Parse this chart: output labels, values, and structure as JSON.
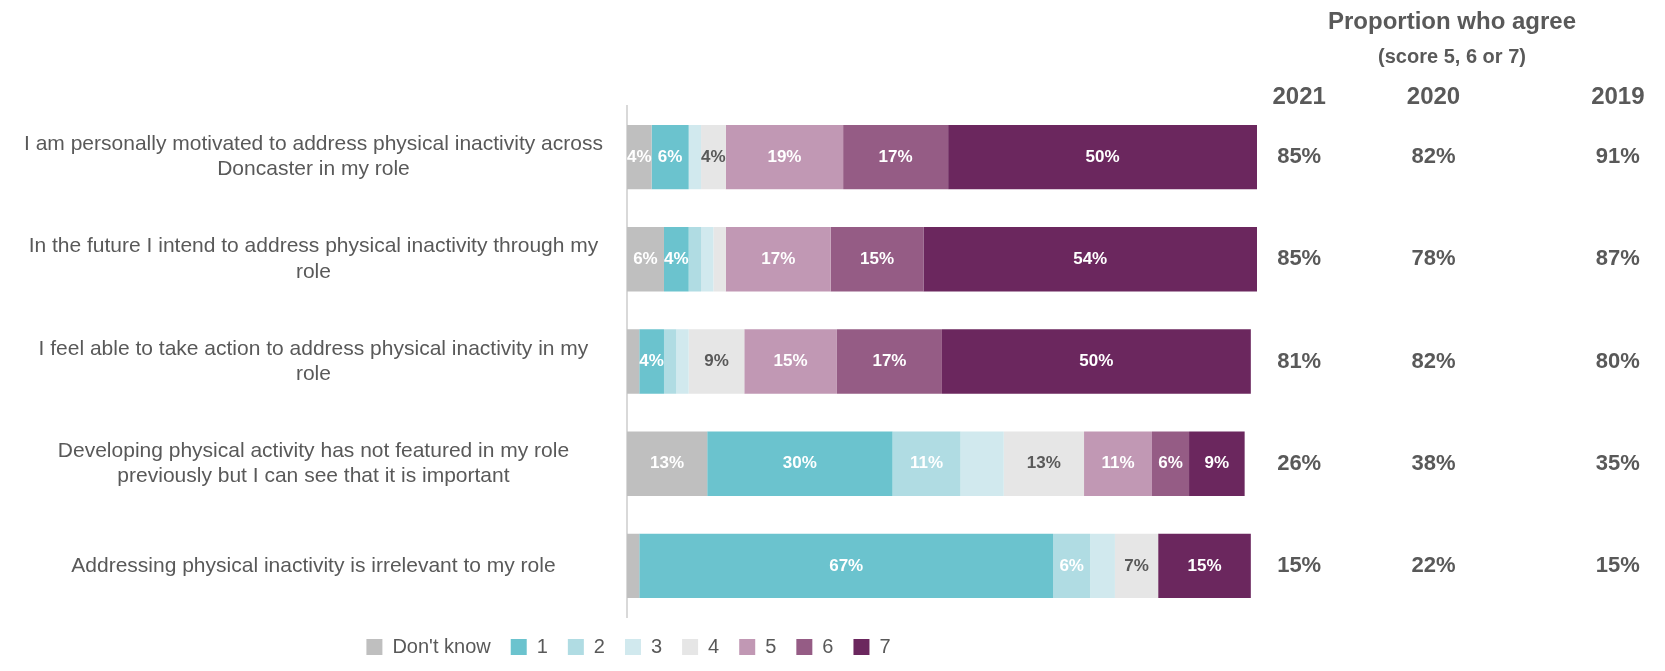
{
  "chart_data": [
    {
      "type": "bar",
      "orientation": "horizontal",
      "stacked": true,
      "legend": "bottom",
      "grid": false,
      "tick_labels": "y",
      "categories": [
        "I am personally motivated to address physical inactivity across Doncaster in my role",
        "In the future I intend to address physical inactivity through my role",
        "I feel able to take action to address physical inactivity in my role",
        "Developing physical activity has not featured in my role previously but I can see that it is important",
        "Addressing physical inactivity is irrelevant to my role"
      ],
      "xlim": [
        0,
        102
      ],
      "series": [
        {
          "name": "Don't know",
          "color": "#bfbfbf",
          "values": [
            4,
            6,
            2,
            13,
            2
          ],
          "value_labels": [
            "4%",
            "6%",
            null,
            "13%",
            null
          ]
        },
        {
          "name": "1",
          "color": "#6bc3ce",
          "values": [
            6,
            4,
            4,
            30,
            67
          ],
          "value_labels": [
            "6%",
            "4%",
            "4%",
            "30%",
            "67%"
          ]
        },
        {
          "name": "2",
          "color": "#b0dce3",
          "values": [
            0,
            2,
            2,
            11,
            6
          ],
          "value_labels": [
            null,
            null,
            null,
            "11%",
            "6%"
          ]
        },
        {
          "name": "3",
          "color": "#d1e9ee",
          "values": [
            2,
            2,
            2,
            7,
            4
          ],
          "value_labels": [
            null,
            null,
            null,
            null,
            null
          ]
        },
        {
          "name": "4",
          "color": "#e6e6e6",
          "values": [
            4,
            2,
            9,
            13,
            7
          ],
          "value_labels": [
            "4%",
            null,
            "9%",
            "13%",
            "7%"
          ]
        },
        {
          "name": "5",
          "color": "#c198b4",
          "values": [
            19,
            17,
            15,
            11,
            0
          ],
          "value_labels": [
            "19%",
            "17%",
            "15%",
            "11%",
            null
          ]
        },
        {
          "name": "6",
          "color": "#955c85",
          "values": [
            17,
            15,
            17,
            6,
            0
          ],
          "value_labels": [
            "17%",
            "15%",
            "17%",
            "6%",
            null
          ]
        },
        {
          "name": "7",
          "color": "#6b275e",
          "values": [
            50,
            54,
            50,
            9,
            15
          ],
          "value_labels": [
            "50%",
            "54%",
            "50%",
            "9%",
            "15%"
          ]
        }
      ]
    },
    {
      "type": "other",
      "title": "Proportion who agree",
      "subtitle": "(score 5, 6 or 7)",
      "categories": [
        "2021",
        "2020",
        "2019"
      ],
      "annotations": [
        "85%",
        "82%",
        "91%",
        "85%",
        "78%",
        "87%",
        "81%",
        "82%",
        "80%",
        "26%",
        "38%",
        "35%",
        "15%",
        "22%",
        "15%"
      ]
    }
  ]
}
